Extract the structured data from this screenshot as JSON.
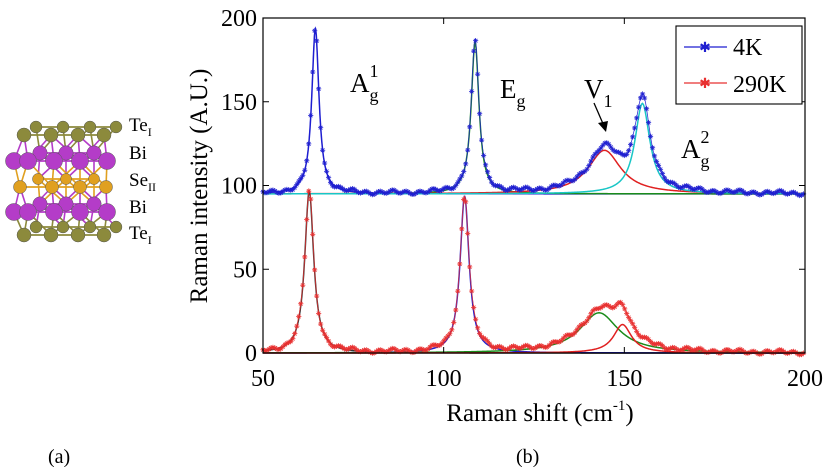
{
  "chart_data": {
    "type": "line",
    "xlabel": "Raman shift (cm",
    "xlabel_sup": "-1",
    "xlabel_close": ")",
    "ylabel": "Raman intensity (A.U.)",
    "xlim": [
      50,
      200
    ],
    "ylim": [
      0,
      200
    ],
    "xticks": [
      50,
      100,
      150,
      200
    ],
    "yticks": [
      0,
      50,
      100,
      150,
      200
    ],
    "legend": {
      "placement": "top-right",
      "entries": [
        {
          "name": "4K",
          "color": "#1f1fd0"
        },
        {
          "name": "290K",
          "color": "#e83030"
        }
      ]
    },
    "peak_labels": [
      {
        "base": "A",
        "sub": "g",
        "sup": "1",
        "x": 65
      },
      {
        "base": "E",
        "sub": "g",
        "sup": "",
        "x": 109
      },
      {
        "base": "V",
        "sub": "1",
        "sup": "",
        "x": 144
      },
      {
        "base": "A",
        "sub": "g",
        "sup": "2",
        "x": 155
      }
    ],
    "series": [
      {
        "name": "4K",
        "baseline": 95,
        "color": "#1f1fd0",
        "peaks": [
          {
            "center": 64.5,
            "height": 99,
            "width": 1.2,
            "fit_color": "#1f1fd0"
          },
          {
            "center": 108.7,
            "height": 91,
            "width": 1.3,
            "fit_color": "#1a8c1a"
          },
          {
            "center": 144.5,
            "height": 26,
            "width": 5.5,
            "fit_color": "#e02020"
          },
          {
            "center": 155.0,
            "height": 54,
            "width": 2.5,
            "fit_color": "#19c6c6"
          }
        ]
      },
      {
        "name": "290K",
        "baseline": 0,
        "color": "#e83030",
        "peaks": [
          {
            "center": 62.8,
            "height": 97,
            "width": 1.5,
            "fit_color": "#333333"
          },
          {
            "center": 105.8,
            "height": 94,
            "width": 1.5,
            "fit_color": "#1f1fd0"
          },
          {
            "center": 143.0,
            "height": 24,
            "width": 6.5,
            "fit_color": "#1a8c1a"
          },
          {
            "center": 149.5,
            "height": 17,
            "width": 3.0,
            "fit_color": "#e02020"
          }
        ]
      }
    ]
  },
  "structure": {
    "layers": [
      {
        "base": "Te",
        "sub": "I"
      },
      {
        "base": "Bi",
        "sub": ""
      },
      {
        "base": "Se",
        "sub": "II"
      },
      {
        "base": "Bi",
        "sub": ""
      },
      {
        "base": "Te",
        "sub": "I"
      }
    ],
    "colors": {
      "te": "#8c8a3c",
      "bi": "#b43cc8",
      "se": "#e0a020"
    }
  },
  "panel_labels": {
    "a": "(a)",
    "b": "(b)"
  }
}
